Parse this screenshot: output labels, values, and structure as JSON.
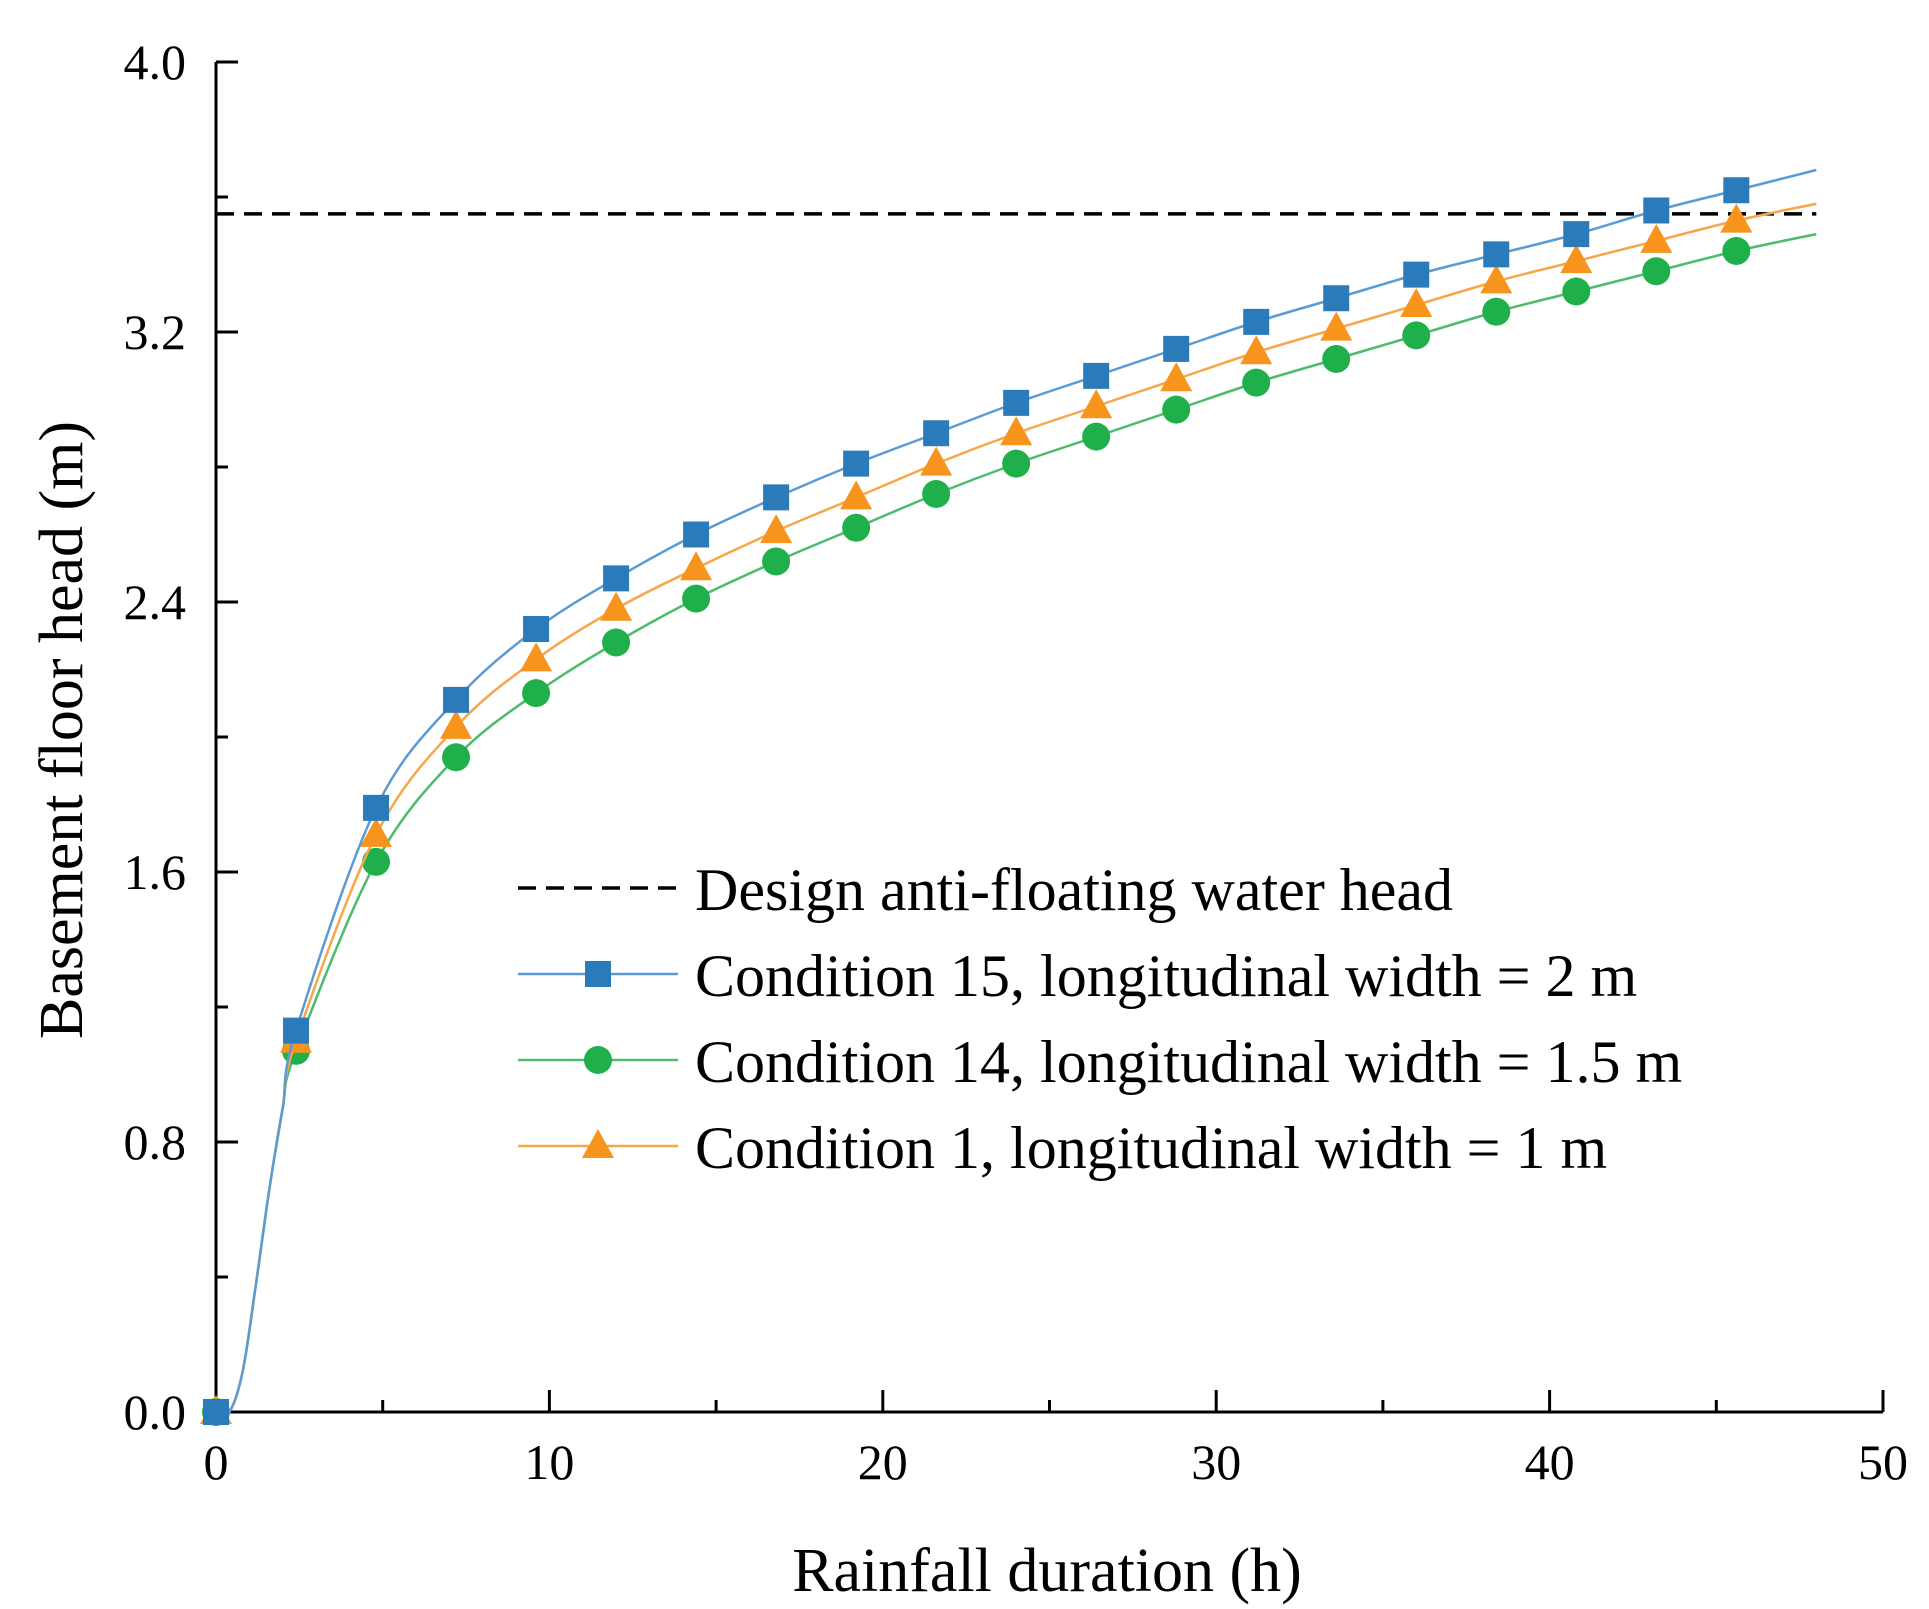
{
  "chart_data": {
    "type": "line",
    "title": "",
    "xlabel": "Rainfall duration (h)",
    "ylabel": "Basement floor head (m)",
    "xlim": [
      0,
      50
    ],
    "ylim": [
      0,
      4.0
    ],
    "xticks": [
      0,
      10,
      20,
      30,
      40,
      50
    ],
    "yticks": [
      0.0,
      0.8,
      1.6,
      2.4,
      3.2,
      4.0
    ],
    "xtick_labels": [
      "0",
      "10",
      "20",
      "30",
      "40",
      "50"
    ],
    "ytick_labels": [
      "0.0",
      "0.8",
      "1.6",
      "2.4",
      "3.2",
      "4.0"
    ],
    "grid": false,
    "legend_position": "center-right",
    "reference_line": {
      "name": "Design anti-floating water head",
      "y": 3.55,
      "style": "dashed",
      "color": "#000000"
    },
    "marker_x": [
      0,
      2.4,
      4.8,
      7.2,
      9.6,
      12.0,
      14.4,
      16.8,
      19.2,
      21.6,
      24.0,
      26.4,
      28.8,
      31.2,
      33.6,
      36.0,
      38.4,
      40.8,
      43.2,
      45.6
    ],
    "series": [
      {
        "name": "Condition 15, longitudinal width = 2 m",
        "color": "#2B7BBA",
        "line_color": "#5B9BD5",
        "marker": "square",
        "values": [
          0.0,
          1.13,
          1.79,
          2.11,
          2.32,
          2.47,
          2.6,
          2.71,
          2.81,
          2.9,
          2.99,
          3.07,
          3.15,
          3.23,
          3.3,
          3.37,
          3.43,
          3.49,
          3.56,
          3.62
        ],
        "end": [
          48,
          3.68
        ]
      },
      {
        "name": "Condition 14, longitudinal width = 1.5 m",
        "color": "#1FB04B",
        "line_color": "#4CBB6C",
        "marker": "circle",
        "values": [
          0.0,
          1.07,
          1.63,
          1.94,
          2.13,
          2.28,
          2.41,
          2.52,
          2.62,
          2.72,
          2.81,
          2.89,
          2.97,
          3.05,
          3.12,
          3.19,
          3.26,
          3.32,
          3.38,
          3.44
        ],
        "end": [
          48,
          3.49
        ]
      },
      {
        "name": "Condition 1, longitudinal width = 1 m",
        "color": "#F7941D",
        "line_color": "#F7A64A",
        "marker": "triangle",
        "values": [
          0.0,
          1.1,
          1.71,
          2.03,
          2.23,
          2.38,
          2.5,
          2.61,
          2.71,
          2.81,
          2.9,
          2.98,
          3.06,
          3.14,
          3.21,
          3.28,
          3.35,
          3.41,
          3.47,
          3.53
        ],
        "end": [
          48,
          3.58
        ]
      }
    ]
  }
}
